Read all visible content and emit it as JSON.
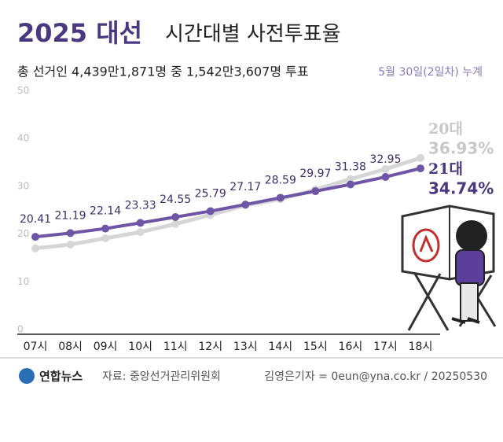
{
  "chart_data": {
    "type": "line",
    "title_main": "2025 대선",
    "title": "시간대별 사전투표율",
    "subtitle": "총 선거인 4,439만1,871명 중 1,542만3,607명 투표",
    "note": "5월 30일(2일차) 누계",
    "categories": [
      "07시",
      "08시",
      "09시",
      "10시",
      "11시",
      "12시",
      "13시",
      "14시",
      "15시",
      "16시",
      "17시",
      "18시"
    ],
    "series": [
      {
        "name": "20대",
        "color": "#d6d6d6",
        "values": [
          18.0,
          18.8,
          20.1,
          21.4,
          23.1,
          25.0,
          27.0,
          28.3,
          30.3,
          32.5,
          34.6,
          36.93
        ],
        "value_labels": [
          null,
          null,
          null,
          null,
          null,
          null,
          null,
          null,
          null,
          null,
          null,
          "36.93%"
        ]
      },
      {
        "name": "21대",
        "color": "#6e55a6",
        "values": [
          20.41,
          21.19,
          22.14,
          23.33,
          24.55,
          25.79,
          27.17,
          28.59,
          29.97,
          31.38,
          32.95,
          34.74
        ],
        "value_labels": [
          "20.41",
          "21.19",
          "22.14",
          "23.33",
          "24.55",
          "25.79",
          "27.17",
          "28.59",
          "29.97",
          "31.38",
          "32.95",
          "34.74%"
        ]
      }
    ],
    "ylim": [
      0,
      50
    ],
    "yticks": [
      0,
      10,
      20,
      30,
      40,
      50
    ],
    "grid": false,
    "source": "자료: 중앙선거관리위원회",
    "agency": "연합뉴스",
    "credit": "김영은기자 = 0eun@yna.co.kr / 20250530"
  }
}
